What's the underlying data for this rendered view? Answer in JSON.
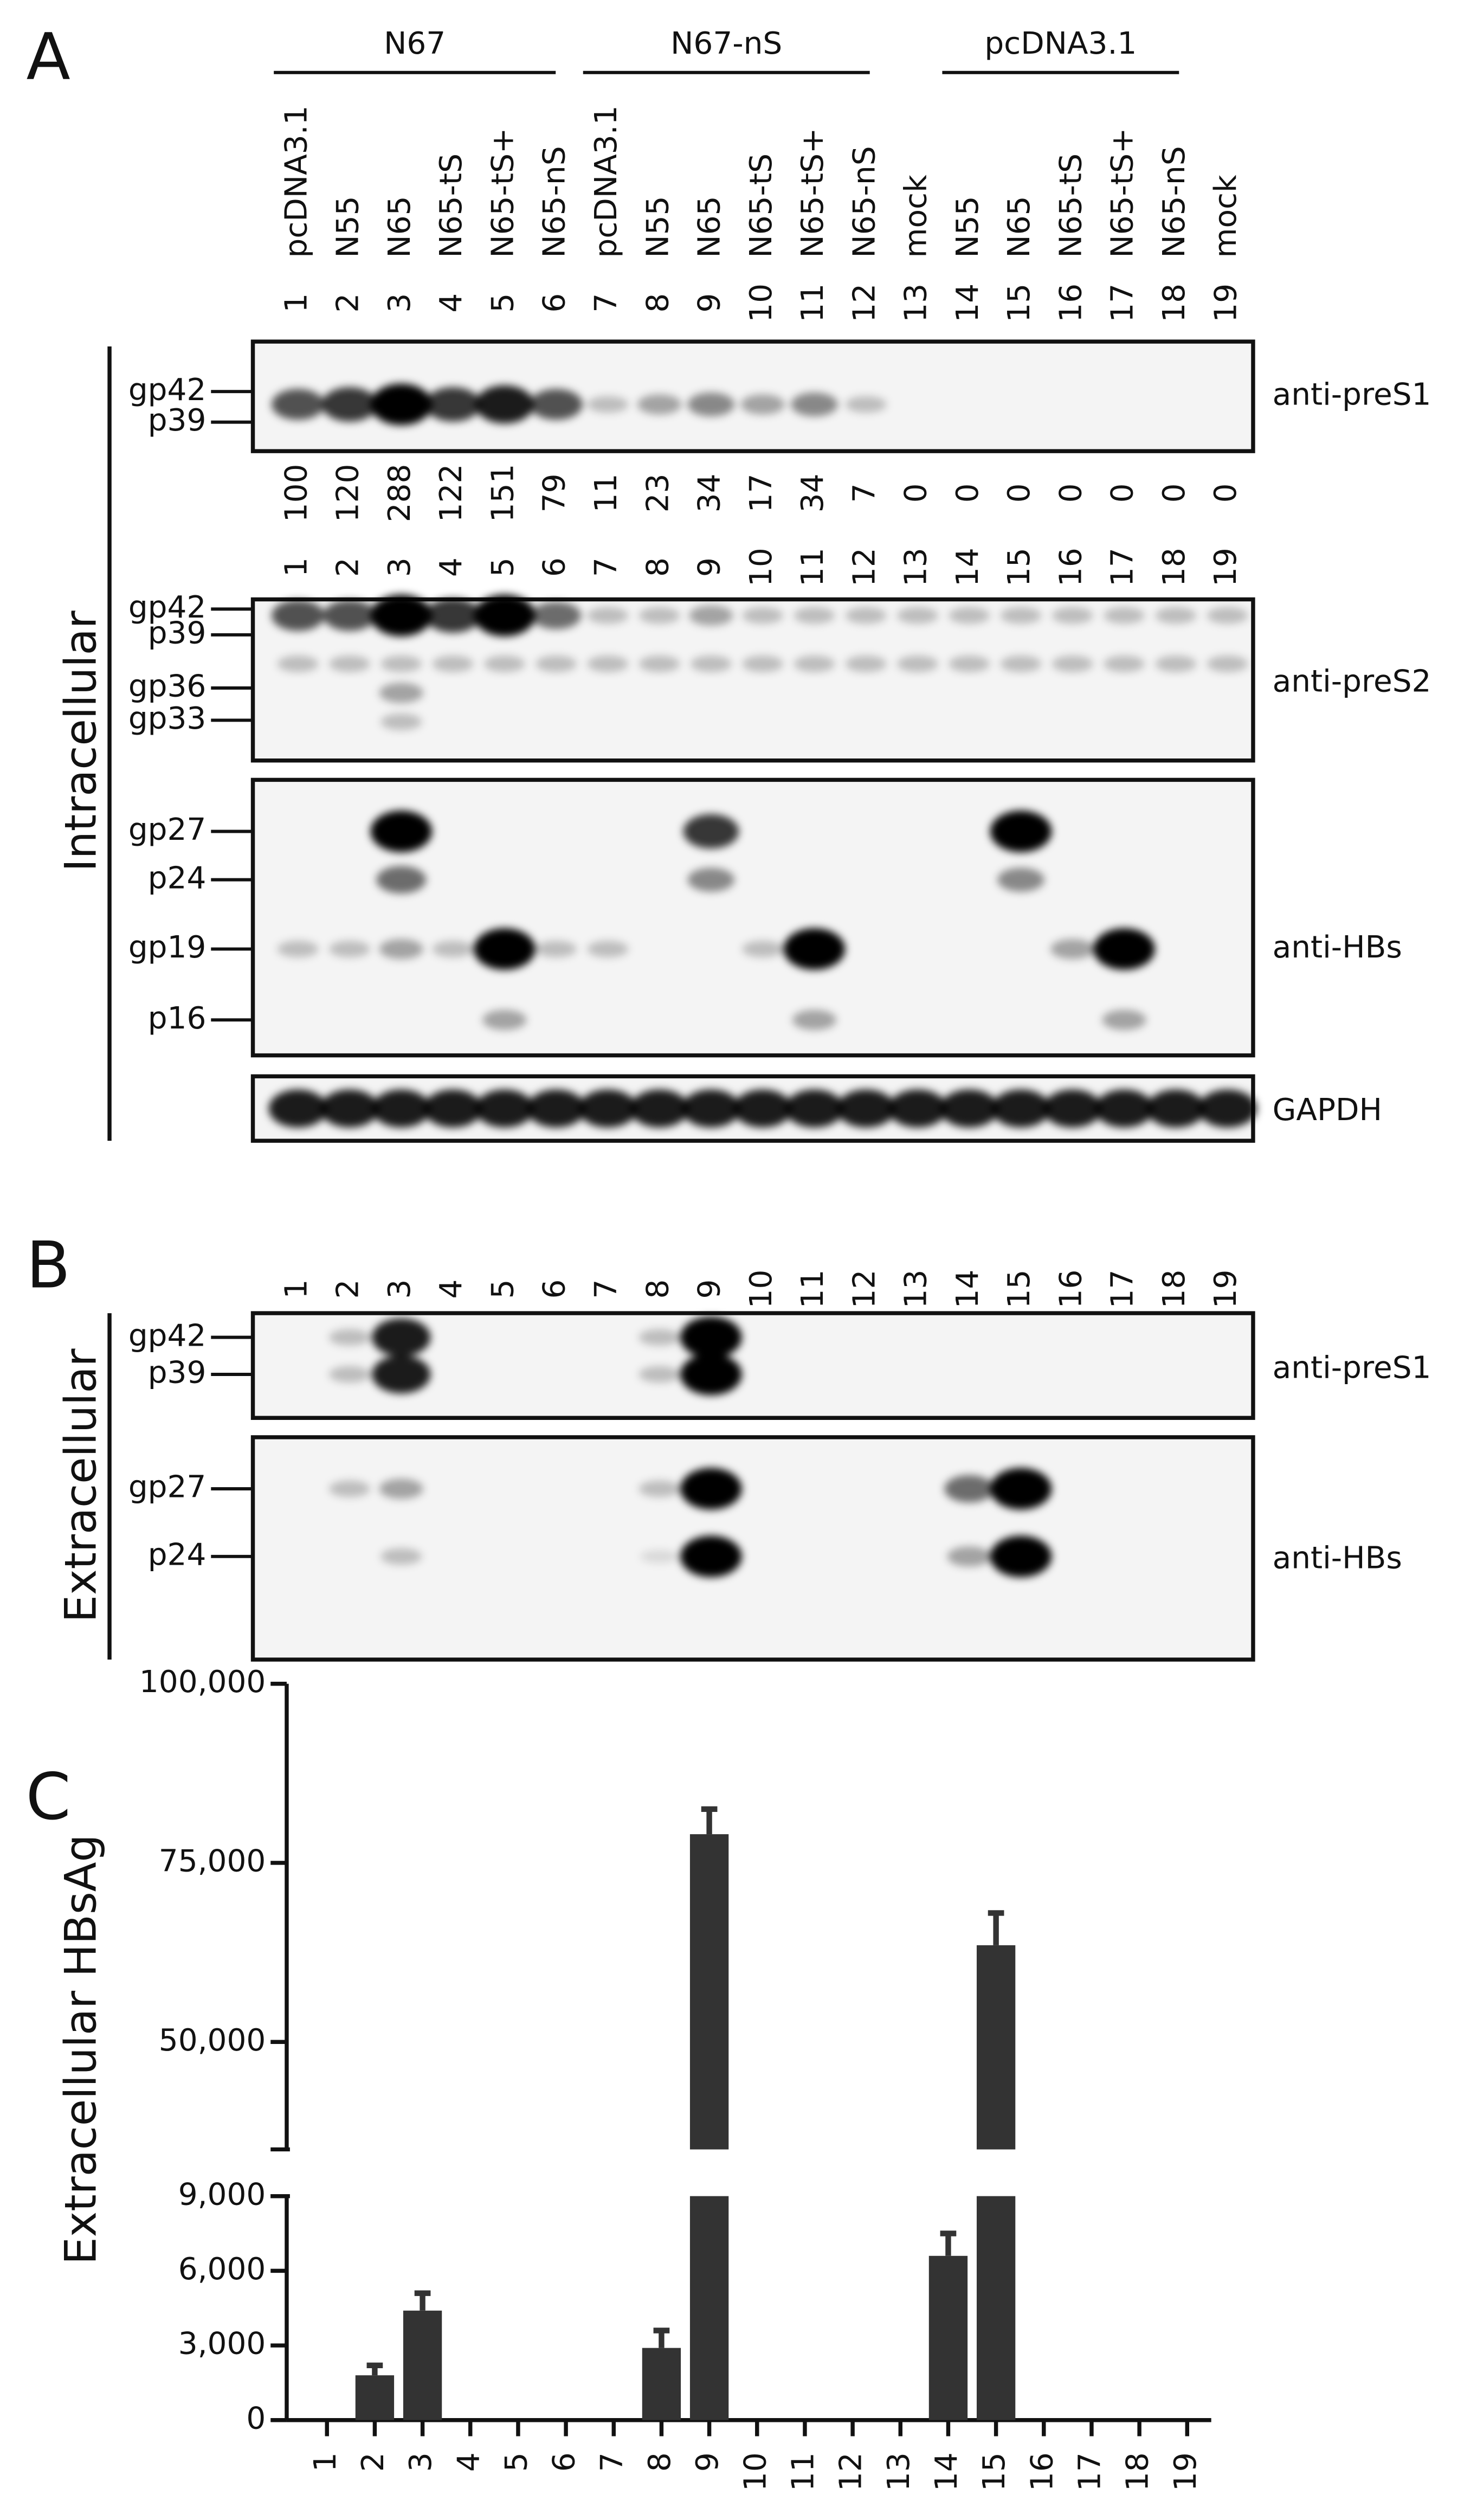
{
  "panel_labels": [
    "A",
    "B",
    "C"
  ],
  "panel_a": {
    "groups": [
      "N67",
      "N67-nS",
      "pcDNA3.1"
    ],
    "lane_labels": [
      "pcDNA3.1",
      "N55",
      "N65",
      "N65-tS",
      "N65-tS+",
      "N65-nS",
      "pcDNA3.1",
      "N55",
      "N65",
      "N65-tS",
      "N65-tS+",
      "N65-nS",
      "mock",
      "N55",
      "N65",
      "N65-tS",
      "N65-tS+",
      "N65-nS",
      "mock"
    ],
    "lane_numbers": [
      "1",
      "2",
      "3",
      "4",
      "5",
      "6",
      "7",
      "8",
      "9",
      "10",
      "11",
      "12",
      "13",
      "14",
      "15",
      "16",
      "17",
      "18",
      "19"
    ],
    "quantification": [
      100,
      120,
      288,
      122,
      151,
      79,
      11,
      23,
      34,
      17,
      34,
      7,
      0,
      0,
      0,
      0,
      0,
      0,
      0
    ],
    "side_label": "Intracellular",
    "blots": [
      {
        "antibody": "anti-preS1",
        "markers": [
          "gp42",
          "p39"
        ]
      },
      {
        "antibody": "anti-preS2",
        "markers": [
          "gp42",
          "p39",
          "gp36",
          "gp33"
        ]
      },
      {
        "antibody": "anti-HBs",
        "markers": [
          "gp27",
          "p24",
          "gp19",
          "p16"
        ]
      },
      {
        "antibody": "GAPDH",
        "markers": []
      }
    ]
  },
  "panel_b": {
    "lane_numbers": [
      "1",
      "2",
      "3",
      "4",
      "5",
      "6",
      "7",
      "8",
      "9",
      "10",
      "11",
      "12",
      "13",
      "14",
      "15",
      "16",
      "17",
      "18",
      "19"
    ],
    "side_label": "Extracellular",
    "blots": [
      {
        "antibody": "anti-preS1",
        "markers": [
          "gp42",
          "p39"
        ]
      },
      {
        "antibody": "anti-HBs",
        "markers": [
          "gp27",
          "p24"
        ]
      }
    ]
  },
  "chart_data": {
    "type": "bar",
    "ylabel": "Extracellular HBsAg",
    "categories": [
      "1",
      "2",
      "3",
      "4",
      "5",
      "6",
      "7",
      "8",
      "9",
      "10",
      "11",
      "12",
      "13",
      "14",
      "15",
      "16",
      "17",
      "18",
      "19"
    ],
    "values": [
      0,
      1800,
      4400,
      0,
      0,
      0,
      0,
      2900,
      79000,
      0,
      0,
      0,
      0,
      6600,
      63500,
      0,
      0,
      0,
      0
    ],
    "errors": [
      0,
      400,
      700,
      0,
      0,
      0,
      0,
      700,
      3500,
      0,
      0,
      0,
      0,
      900,
      4500,
      0,
      0,
      0,
      0
    ],
    "color": "#333333",
    "segments": [
      {
        "ylim": [
          0,
          9000
        ],
        "yticks": [
          0,
          {
            "value": 3000,
            "label": "3,000"
          },
          {
            "value": 6000,
            "label": "6,000"
          },
          {
            "value": 9000,
            "label": "9,000"
          }
        ]
      },
      {
        "ylim": [
          35000,
          100000
        ],
        "yticks": [
          {
            "value": 50000,
            "label": "50,000"
          },
          {
            "value": 75000,
            "label": "75,000"
          },
          {
            "value": 100000,
            "label": "100,000"
          }
        ]
      }
    ]
  }
}
